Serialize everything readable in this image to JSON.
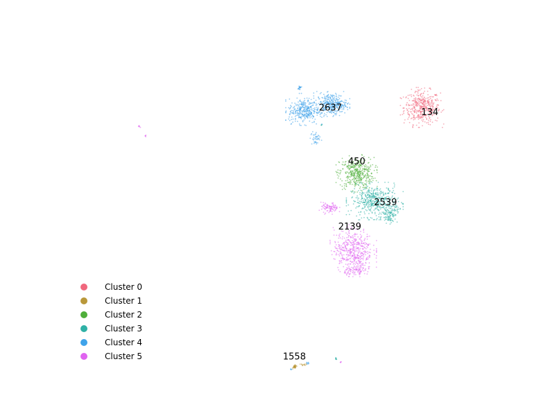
{
  "chart_data": {
    "type": "scatter",
    "title": "",
    "xlabel": "",
    "ylabel": "",
    "axes_visible": false,
    "grid": false,
    "legend_position": "lower-left",
    "series": [
      {
        "name": "Cluster 0",
        "color": "#f0677d",
        "blobs": [
          {
            "x": 0.82,
            "y": 0.81,
            "rx": 0.042,
            "ry": 0.048,
            "n": 420
          }
        ]
      },
      {
        "name": "Cluster 1",
        "color": "#b9983a",
        "blobs": [
          {
            "x": 0.524,
            "y": 0.062,
            "rx": 0.004,
            "ry": 0.005,
            "n": 40
          },
          {
            "x": 0.546,
            "y": 0.068,
            "rx": 0.008,
            "ry": 0.003,
            "n": 12
          }
        ]
      },
      {
        "name": "Cluster 2",
        "color": "#4fae3a",
        "blobs": [
          {
            "x": 0.668,
            "y": 0.62,
            "rx": 0.04,
            "ry": 0.045,
            "n": 420
          }
        ]
      },
      {
        "name": "Cluster 3",
        "color": "#2fb1a6",
        "blobs": [
          {
            "x": 0.71,
            "y": 0.54,
            "rx": 0.055,
            "ry": 0.045,
            "n": 460
          },
          {
            "x": 0.745,
            "y": 0.505,
            "rx": 0.018,
            "ry": 0.028,
            "n": 110
          },
          {
            "x": 0.62,
            "y": 0.084,
            "rx": 0.002,
            "ry": 0.006,
            "n": 8
          },
          {
            "x": 0.586,
            "y": 0.76,
            "rx": 0.003,
            "ry": 0.002,
            "n": 4
          }
        ]
      },
      {
        "name": "Cluster 4",
        "color": "#3fa3ea",
        "blobs": [
          {
            "x": 0.545,
            "y": 0.8,
            "rx": 0.035,
            "ry": 0.035,
            "n": 330
          },
          {
            "x": 0.61,
            "y": 0.82,
            "rx": 0.035,
            "ry": 0.03,
            "n": 330
          },
          {
            "x": 0.572,
            "y": 0.72,
            "rx": 0.012,
            "ry": 0.022,
            "n": 40
          },
          {
            "x": 0.535,
            "y": 0.865,
            "rx": 0.004,
            "ry": 0.012,
            "n": 20
          },
          {
            "x": 0.553,
            "y": 0.073,
            "rx": 0.003,
            "ry": 0.003,
            "n": 8
          },
          {
            "x": 0.515,
            "y": 0.055,
            "rx": 0.002,
            "ry": 0.002,
            "n": 4
          }
        ]
      },
      {
        "name": "Cluster 5",
        "color": "#e064f0",
        "blobs": [
          {
            "x": 0.66,
            "y": 0.4,
            "rx": 0.045,
            "ry": 0.06,
            "n": 460
          },
          {
            "x": 0.605,
            "y": 0.52,
            "rx": 0.02,
            "ry": 0.015,
            "n": 90
          },
          {
            "x": 0.67,
            "y": 0.34,
            "rx": 0.03,
            "ry": 0.015,
            "n": 90
          },
          {
            "x": 0.163,
            "y": 0.755,
            "rx": 0.003,
            "ry": 0.004,
            "n": 6
          },
          {
            "x": 0.177,
            "y": 0.727,
            "rx": 0.002,
            "ry": 0.004,
            "n": 5
          },
          {
            "x": 0.631,
            "y": 0.075,
            "rx": 0.002,
            "ry": 0.003,
            "n": 5
          }
        ]
      }
    ],
    "annotations": [
      {
        "text": "2637",
        "x": 0.607,
        "y": 0.808
      },
      {
        "text": "134",
        "x": 0.838,
        "y": 0.795
      },
      {
        "text": "450",
        "x": 0.668,
        "y": 0.653
      },
      {
        "text": "2539",
        "x": 0.735,
        "y": 0.535
      },
      {
        "text": "2139",
        "x": 0.652,
        "y": 0.465
      },
      {
        "text": "1558",
        "x": 0.523,
        "y": 0.09
      }
    ],
    "legend": [
      "Cluster 0",
      "Cluster 1",
      "Cluster 2",
      "Cluster 3",
      "Cluster 4",
      "Cluster 5"
    ]
  }
}
